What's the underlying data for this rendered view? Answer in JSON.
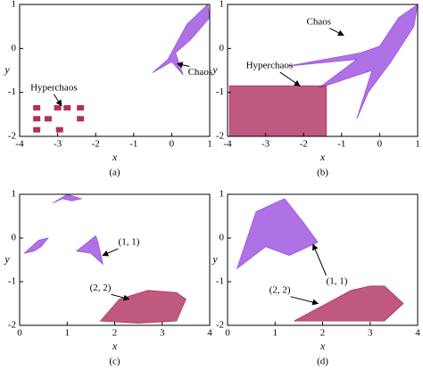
{
  "chart_data": [
    {
      "type": "scatter",
      "xlabel": "x",
      "ylabel": "y",
      "caption": "(a)",
      "xlim": [
        -4,
        1
      ],
      "ylim": [
        -2,
        1
      ],
      "xticks": [
        -4,
        -3,
        -2,
        -1,
        0,
        1
      ],
      "yticks": [
        -2,
        -1,
        0,
        1
      ],
      "annotations": [
        "Hyperchaos",
        "Chaos"
      ],
      "series": [
        {
          "color": "#9b4fe0",
          "fill": true,
          "x": [
            -0.5,
            -0.1,
            0.4,
            0.95,
            1,
            0.5,
            0.1,
            0.3,
            0
          ],
          "y": [
            -0.55,
            -0.25,
            0.55,
            1,
            0.7,
            0.2,
            -0.1,
            -0.6,
            -0.3
          ]
        },
        {
          "color": "#b03060",
          "fill": false,
          "x": [
            -3.55,
            -3.55,
            -3.55,
            -3.0,
            -2.75,
            -2.4,
            -2.4,
            -2.95,
            -3.25
          ],
          "y": [
            -1.35,
            -1.6,
            -1.85,
            -1.35,
            -1.35,
            -1.35,
            -1.6,
            -1.85,
            -1.6
          ]
        }
      ]
    },
    {
      "type": "scatter",
      "xlabel": "x",
      "ylabel": "y",
      "caption": "(b)",
      "xlim": [
        -4,
        1
      ],
      "ylim": [
        -2,
        1
      ],
      "xticks": [
        -4,
        -3,
        -2,
        -1,
        0,
        1
      ],
      "yticks": [
        -2,
        -1,
        0,
        1
      ],
      "annotations": [
        "Chaos",
        "Hyperchaos"
      ],
      "series": [
        {
          "color": "#9b4fe0",
          "fill": true,
          "x": [
            -2.4,
            -0.5,
            0,
            0.5,
            1,
            0.9,
            0.3,
            -0.3,
            -0.6,
            -0.2,
            -1.6,
            -0.6
          ],
          "y": [
            -0.4,
            -0.1,
            0.05,
            0.7,
            1,
            0.5,
            -0.3,
            -1.0,
            -1.6,
            -0.5,
            -0.9,
            -0.25
          ]
        },
        {
          "color": "#b03060",
          "fill": true,
          "x": [
            -3.95,
            -1.4,
            -1.4,
            -3.95
          ],
          "y": [
            -0.85,
            -0.85,
            -2,
            -2
          ]
        }
      ]
    },
    {
      "type": "scatter",
      "xlabel": "x",
      "ylabel": "y",
      "caption": "(c)",
      "xlim": [
        0,
        4
      ],
      "ylim": [
        -2,
        1
      ],
      "xticks": [
        0,
        1,
        2,
        3,
        4
      ],
      "yticks": [
        -2,
        -1,
        0,
        1
      ],
      "annotations": [
        "(1, 1)",
        "(2, 2)"
      ],
      "series": [
        {
          "color": "#9b4fe0",
          "fill": true,
          "x": [
            0.1,
            0.4,
            0.6,
            0.45,
            0.3
          ],
          "y": [
            -0.35,
            -0.05,
            0.0,
            -0.2,
            -0.3
          ]
        },
        {
          "color": "#9b4fe0",
          "fill": true,
          "x": [
            0.7,
            1.0,
            1.3,
            1.1,
            0.9
          ],
          "y": [
            0.8,
            1.0,
            0.9,
            0.85,
            0.9
          ]
        },
        {
          "color": "#9b4fe0",
          "fill": true,
          "x": [
            1.2,
            1.6,
            1.65,
            1.75,
            1.5
          ],
          "y": [
            -0.3,
            0.05,
            -0.1,
            -0.6,
            -0.35
          ]
        },
        {
          "color": "#b03060",
          "fill": true,
          "x": [
            1.7,
            2.1,
            2.7,
            3.3,
            3.5,
            3.3,
            2.5
          ],
          "y": [
            -1.9,
            -1.4,
            -1.2,
            -1.25,
            -1.4,
            -1.9,
            -1.95
          ]
        }
      ]
    },
    {
      "type": "scatter",
      "xlabel": "x",
      "ylabel": "y",
      "caption": "(d)",
      "xlim": [
        0,
        4
      ],
      "ylim": [
        -2,
        1
      ],
      "xticks": [
        0,
        1,
        2,
        3,
        4
      ],
      "yticks": [
        -2,
        -1,
        0,
        1
      ],
      "annotations": [
        "(1, 1)",
        "(2, 2)"
      ],
      "series": [
        {
          "color": "#9b4fe0",
          "fill": true,
          "x": [
            0.2,
            0.6,
            1.2,
            1.6,
            1.9,
            1.3,
            0.8
          ],
          "y": [
            -0.7,
            0.6,
            0.9,
            0.35,
            -0.1,
            -0.4,
            -0.2
          ]
        },
        {
          "color": "#b03060",
          "fill": true,
          "x": [
            1.4,
            2.0,
            2.6,
            3.0,
            3.3,
            3.7,
            3.3,
            2.4
          ],
          "y": [
            -1.9,
            -1.55,
            -1.2,
            -1.1,
            -1.1,
            -1.5,
            -1.9,
            -1.9
          ]
        }
      ]
    }
  ]
}
